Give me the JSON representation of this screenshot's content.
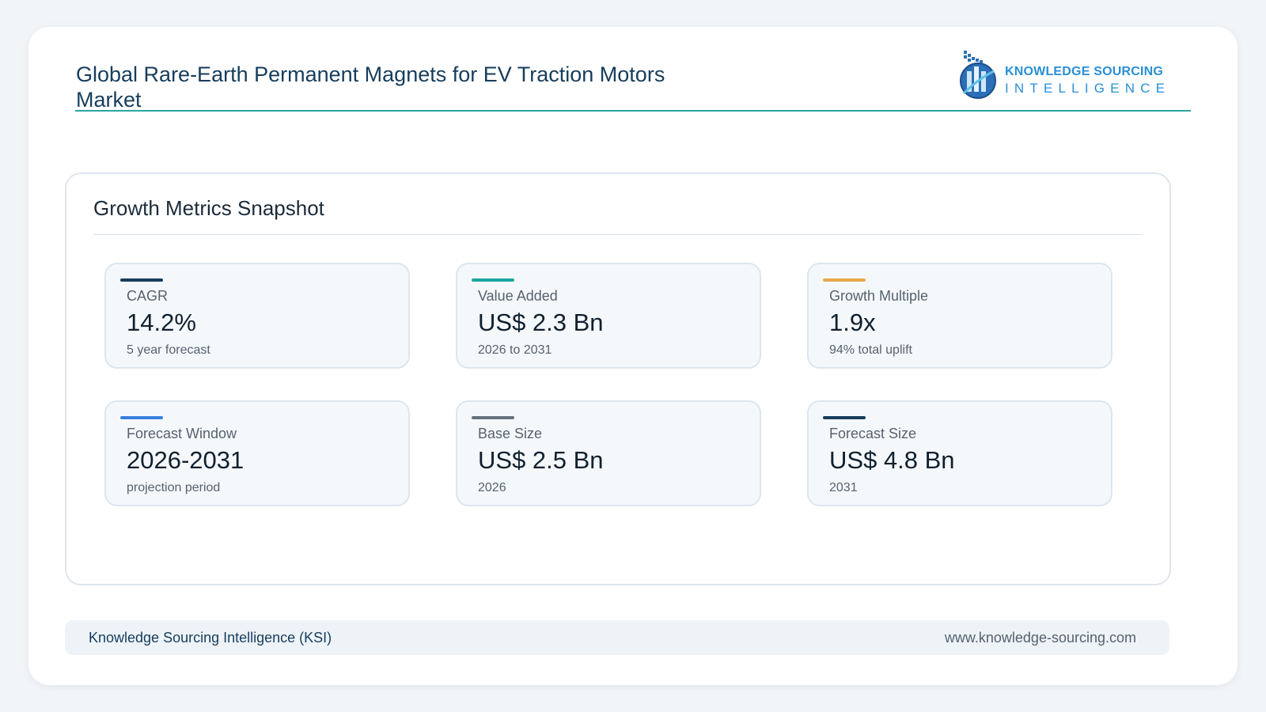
{
  "header": {
    "title": "Global Rare-Earth Permanent Magnets for EV Traction Motors Market"
  },
  "logo": {
    "line1": "KNOWLEDGE SOURCING",
    "line2": "INTELLIGENCE",
    "icon": "bar-chart-globe-logo-icon"
  },
  "panel": {
    "title": "Growth Metrics Snapshot"
  },
  "metrics": [
    {
      "label": "CAGR",
      "value": "14.2%",
      "sub": "5 year forecast",
      "accent": "#163d5c"
    },
    {
      "label": "Value Added",
      "value": "US$ 2.3 Bn",
      "sub": "2026 to 2031",
      "accent": "#1ba5a0"
    },
    {
      "label": "Growth Multiple",
      "value": "1.9x",
      "sub": "94% total uplift",
      "accent": "#e8a84a"
    },
    {
      "label": "Forecast Window",
      "value": "2026-2031",
      "sub": "projection period",
      "accent": "#3a7fe0"
    },
    {
      "label": "Base Size",
      "value": "US$ 2.5 Bn",
      "sub": "2026",
      "accent": "#66717e"
    },
    {
      "label": "Forecast Size",
      "value": "US$ 4.8 Bn",
      "sub": "2031",
      "accent": "#163d5c"
    }
  ],
  "footer": {
    "left": "Knowledge Sourcing Intelligence (KSI)",
    "right": "www.knowledge-sourcing.com"
  }
}
